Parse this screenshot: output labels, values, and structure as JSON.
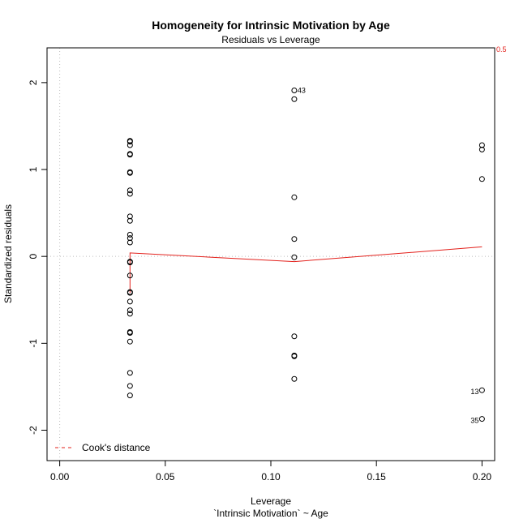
{
  "chart_data": {
    "type": "scatter",
    "title": "Homogeneity for Intrinsic Motivation by Age",
    "subtitle": "Residuals vs Leverage",
    "xlabel": "Leverage",
    "xlabel_sub": "`Intrinsic Motivation` ~ Age",
    "ylabel": "Standardized residuals",
    "xlim": [
      -0.006,
      0.206
    ],
    "ylim": [
      -2.35,
      2.4
    ],
    "x_ticks": [
      0.0,
      0.05,
      0.1,
      0.15,
      0.2
    ],
    "x_tick_labels": [
      "0.00",
      "0.05",
      "0.10",
      "0.15",
      "0.20"
    ],
    "y_ticks": [
      -2,
      -1,
      0,
      1,
      2
    ],
    "y_tick_labels": [
      "-2",
      "-1",
      "0",
      "1",
      "2"
    ],
    "grid": false,
    "reference_lines": {
      "h": 0,
      "v": 0,
      "style": "dotted",
      "color": "#bebebe"
    },
    "points": [
      {
        "x": 0.0333,
        "y": 1.33
      },
      {
        "x": 0.0333,
        "y": 1.32
      },
      {
        "x": 0.0333,
        "y": 1.28
      },
      {
        "x": 0.0333,
        "y": 1.18
      },
      {
        "x": 0.0333,
        "y": 1.17
      },
      {
        "x": 0.0333,
        "y": 0.97
      },
      {
        "x": 0.0333,
        "y": 0.96
      },
      {
        "x": 0.0333,
        "y": 0.76
      },
      {
        "x": 0.0333,
        "y": 0.72
      },
      {
        "x": 0.0333,
        "y": 0.46
      },
      {
        "x": 0.0333,
        "y": 0.41
      },
      {
        "x": 0.0333,
        "y": 0.25
      },
      {
        "x": 0.0333,
        "y": 0.21
      },
      {
        "x": 0.0333,
        "y": 0.16
      },
      {
        "x": 0.0333,
        "y": -0.06
      },
      {
        "x": 0.0333,
        "y": -0.07
      },
      {
        "x": 0.0333,
        "y": -0.22
      },
      {
        "x": 0.0333,
        "y": -0.41
      },
      {
        "x": 0.0333,
        "y": -0.42
      },
      {
        "x": 0.0333,
        "y": -0.52
      },
      {
        "x": 0.0333,
        "y": -0.62
      },
      {
        "x": 0.0333,
        "y": -0.66
      },
      {
        "x": 0.0333,
        "y": -0.87
      },
      {
        "x": 0.0333,
        "y": -0.88
      },
      {
        "x": 0.0333,
        "y": -0.98
      },
      {
        "x": 0.0333,
        "y": -1.34
      },
      {
        "x": 0.0333,
        "y": -1.49
      },
      {
        "x": 0.0333,
        "y": -1.6
      },
      {
        "x": 0.1111,
        "y": 1.91
      },
      {
        "x": 0.1111,
        "y": 1.81
      },
      {
        "x": 0.1111,
        "y": 0.68
      },
      {
        "x": 0.1111,
        "y": 0.2
      },
      {
        "x": 0.1111,
        "y": -0.01
      },
      {
        "x": 0.1111,
        "y": -0.92
      },
      {
        "x": 0.1111,
        "y": -1.14
      },
      {
        "x": 0.1111,
        "y": -1.15
      },
      {
        "x": 0.1111,
        "y": -1.41
      },
      {
        "x": 0.2,
        "y": 1.28
      },
      {
        "x": 0.2,
        "y": 1.23
      },
      {
        "x": 0.2,
        "y": 0.89
      },
      {
        "x": 0.2,
        "y": -1.54
      },
      {
        "x": 0.2,
        "y": -1.87
      }
    ],
    "point_labels": [
      {
        "x": 0.1111,
        "y": 1.91,
        "text": "43",
        "side": "right"
      },
      {
        "x": 0.2,
        "y": -1.54,
        "text": "13",
        "side": "left"
      },
      {
        "x": 0.2,
        "y": -1.87,
        "text": "35",
        "side": "left"
      }
    ],
    "smoother": {
      "name": "smoother",
      "color": "#e3201b",
      "points": [
        {
          "x": 0.0333,
          "y": -0.42
        },
        {
          "x": 0.0333,
          "y": 0.04
        },
        {
          "x": 0.1111,
          "y": -0.06
        },
        {
          "x": 0.2,
          "y": 0.11
        }
      ]
    },
    "cooks_distance": {
      "label": "0.5",
      "color": "#e3201b",
      "level": 0.5
    },
    "legend": {
      "position": "bottom-left",
      "entries": [
        {
          "label": "Cook's distance",
          "style": "dashed",
          "color": "#e3201b"
        }
      ]
    }
  }
}
